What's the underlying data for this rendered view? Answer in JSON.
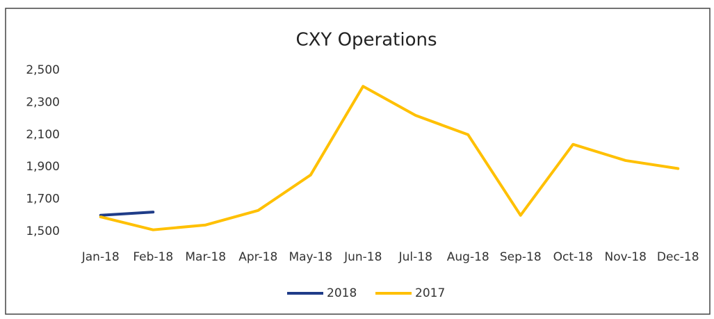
{
  "chart_data": {
    "type": "line",
    "title": "CXY Operations",
    "categories": [
      "Jan-18",
      "Feb-18",
      "Mar-18",
      "Apr-18",
      "May-18",
      "Jun-18",
      "Jul-18",
      "Aug-18",
      "Sep-18",
      "Oct-18",
      "Nov-18",
      "Dec-18"
    ],
    "series": [
      {
        "name": "2018",
        "color": "#1f3c88",
        "values": [
          1600,
          1620,
          null,
          null,
          null,
          null,
          null,
          null,
          null,
          null,
          null,
          null
        ]
      },
      {
        "name": "2017",
        "color": "#ffc000",
        "values": [
          1590,
          1510,
          1540,
          1630,
          1850,
          2400,
          2220,
          2100,
          1600,
          2040,
          1940,
          1890
        ]
      }
    ],
    "ylim": [
      1500,
      2500
    ],
    "yticks": [
      {
        "value": 1500,
        "label": "1,500"
      },
      {
        "value": 1700,
        "label": "1,700"
      },
      {
        "value": 1900,
        "label": "1,900"
      },
      {
        "value": 2100,
        "label": "2,100"
      },
      {
        "value": 2300,
        "label": "2,300"
      },
      {
        "value": 2500,
        "label": "2,500"
      }
    ],
    "grid": false,
    "legend": "bottom"
  }
}
